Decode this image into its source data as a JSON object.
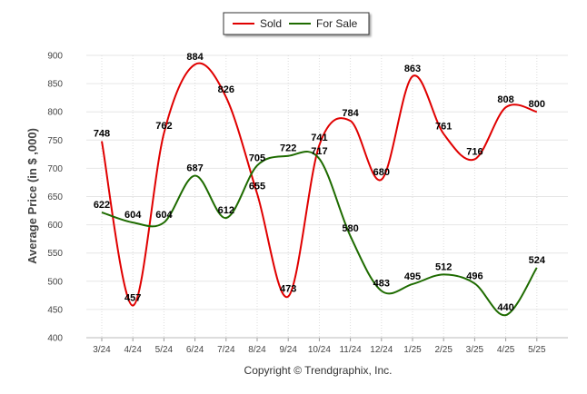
{
  "chart_data": {
    "type": "line",
    "categories": [
      "3/24",
      "4/24",
      "5/24",
      "6/24",
      "7/24",
      "8/24",
      "9/24",
      "10/24",
      "11/24",
      "12/24",
      "1/25",
      "2/25",
      "3/25",
      "4/25",
      "5/25"
    ],
    "series": [
      {
        "name": "Sold",
        "color": "#e00000",
        "values": [
          748,
          457,
          762,
          884,
          826,
          655,
          473,
          741,
          784,
          680,
          863,
          761,
          716,
          808,
          800
        ]
      },
      {
        "name": "For Sale",
        "color": "#1e6b00",
        "values": [
          622,
          604,
          604,
          687,
          612,
          705,
          722,
          717,
          580,
          483,
          495,
          512,
          496,
          440,
          524
        ]
      }
    ],
    "title": "",
    "xlabel": "",
    "ylabel": "Average Price (in $ ,000)",
    "ylim": [
      400,
      900
    ],
    "yticks": [
      400,
      450,
      500,
      550,
      600,
      650,
      700,
      750,
      800,
      850,
      900
    ],
    "grid": true,
    "legend_position": "top-center",
    "footer": "Copyright © Trendgraphix, Inc."
  }
}
